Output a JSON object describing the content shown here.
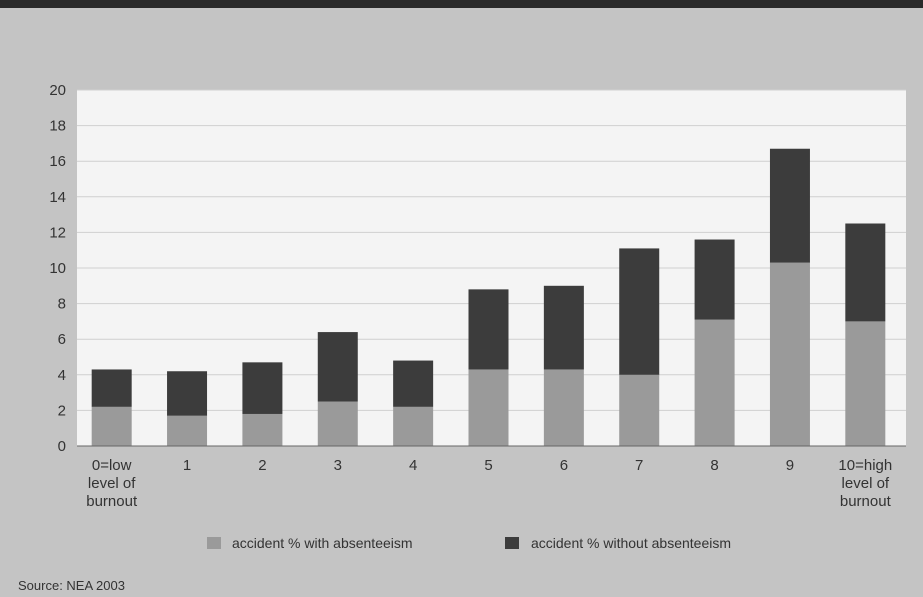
{
  "chart_data": {
    "type": "bar",
    "stacked": true,
    "categories": [
      [
        "0=low",
        "level of",
        "burnout"
      ],
      [
        "1"
      ],
      [
        "2"
      ],
      [
        "3"
      ],
      [
        "4"
      ],
      [
        "5"
      ],
      [
        "6"
      ],
      [
        "7"
      ],
      [
        "8"
      ],
      [
        "9"
      ],
      [
        "10=high",
        "level of",
        "burnout"
      ]
    ],
    "series": [
      {
        "name": "accident % with absenteeism",
        "color": "#9a9a9a",
        "values": [
          2.2,
          1.7,
          1.8,
          2.5,
          2.2,
          4.3,
          4.3,
          4.0,
          7.1,
          10.3,
          7.0
        ]
      },
      {
        "name": "accident % without absenteeism",
        "color": "#3c3c3c",
        "values": [
          2.1,
          2.5,
          2.9,
          3.9,
          2.6,
          4.5,
          4.7,
          7.1,
          4.5,
          6.4,
          5.5
        ]
      }
    ],
    "ylim": [
      0,
      20
    ],
    "yticks": [
      0,
      2,
      4,
      6,
      8,
      10,
      12,
      14,
      16,
      18,
      20
    ],
    "grid": true,
    "legend_position": "bottom",
    "title": "",
    "xlabel": "",
    "ylabel": ""
  },
  "source": "Source: NEA 2003"
}
